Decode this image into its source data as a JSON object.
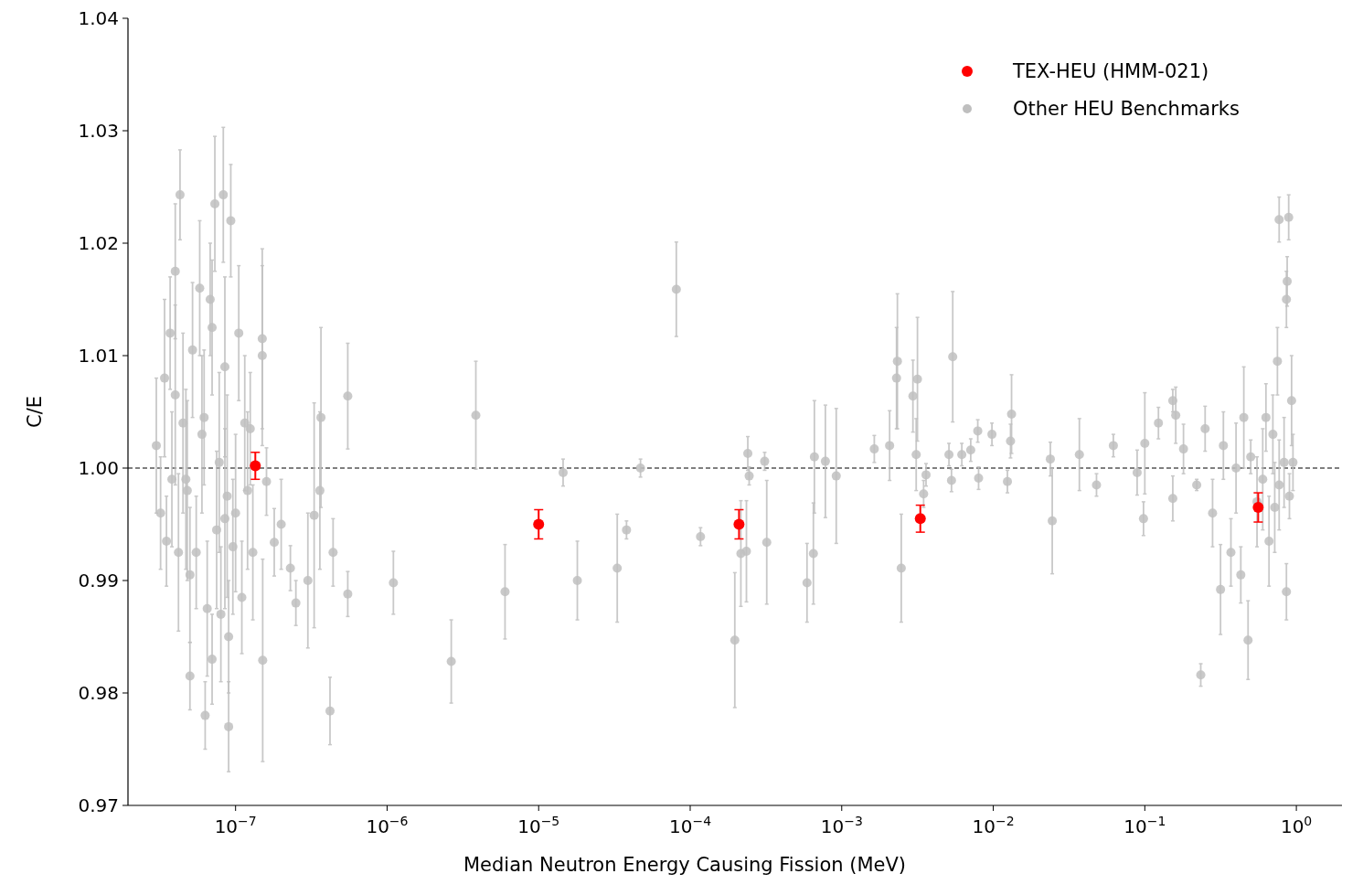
{
  "chart_data": {
    "type": "scatter",
    "xlabel": "Median Neutron Energy Causing Fission (MeV)",
    "ylabel": "C/E",
    "log": "x",
    "xlim": [
      1.95e-08,
      2.0
    ],
    "ylim": [
      0.97,
      1.04
    ],
    "xticks": [
      {
        "value": 1e-07,
        "label": "10$^{−7}$"
      },
      {
        "value": 1e-06,
        "label": "10$^{−6}$"
      },
      {
        "value": 1e-05,
        "label": "10$^{−5}$"
      },
      {
        "value": 0.0001,
        "label": "10$^{−4}$"
      },
      {
        "value": 0.001,
        "label": "10$^{−3}$"
      },
      {
        "value": 0.01,
        "label": "10$^{−2}$"
      },
      {
        "value": 0.1,
        "label": "10$^{−1}$"
      },
      {
        "value": 1,
        "label": "10$^{0}$"
      }
    ],
    "yticks": [
      0.97,
      0.98,
      0.99,
      {
        "value": 1,
        "label": "1.00"
      },
      1.01,
      1.02,
      1.03,
      1.04
    ],
    "ref_lines": [
      {
        "axis": "y",
        "value": 1,
        "color": "#000000",
        "line_style": "dashed"
      }
    ],
    "legend": "top right",
    "marker": "circle",
    "grid": false,
    "series": [
      {
        "name": "TEX-HEU (HMM-021)",
        "color": "#ff0000",
        "x": [
          1.35e-07,
          1e-05,
          0.00021,
          0.0033,
          0.56
        ],
        "values": [
          1.0002,
          0.995,
          0.995,
          0.9955,
          0.9965
        ],
        "errors": [
          0.0012,
          0.0013,
          0.0013,
          0.0012,
          0.0013
        ]
      },
      {
        "name": "Other HEU Benchmarks",
        "color": "#bfbfbf",
        "x": [
          3e-08,
          3.2e-08,
          3.4e-08,
          3.5e-08,
          3.7e-08,
          3.8e-08,
          4e-08,
          4.2e-08,
          4.3e-08,
          4.5e-08,
          4.7e-08,
          5e-08,
          5.2e-08,
          5.5e-08,
          5.8e-08,
          6e-08,
          6.3e-08,
          6.5e-08,
          6.8e-08,
          7e-08,
          7.3e-08,
          7.5e-08,
          7.8e-08,
          8e-08,
          8.3e-08,
          8.5e-08,
          8.8e-08,
          9e-08,
          9.3e-08,
          9.6e-08,
          1e-07,
          1.05e-07,
          1.1e-07,
          1.15e-07,
          1.2e-07,
          1.25e-07,
          5e-08,
          7e-08,
          4e-08,
          8.5e-08,
          4.8e-08,
          6.2e-08,
          9e-08,
          1.3e-07,
          1.51e-07,
          1.5e-07,
          1.5e-07,
          1.6e-07,
          1.8e-07,
          2e-07,
          2.3e-07,
          2.5e-07,
          3e-07,
          3.3e-07,
          3.66e-07,
          3.6e-07,
          4.2e-07,
          4.4e-07,
          5.5e-07,
          5.5e-07,
          1.1e-06,
          2.65e-06,
          3.85e-06,
          6e-06,
          1.45e-05,
          1.8e-05,
          3.3e-05,
          3.8e-05,
          4.7e-05,
          8.1e-05,
          0.000117,
          0.000197,
          0.000216,
          0.00024,
          0.000235,
          0.000245,
          0.00032,
          0.00031,
          0.00059,
          0.00065,
          0.00066,
          0.00078,
          0.00092,
          0.00164,
          0.00207,
          0.00233,
          0.0023,
          0.00247,
          0.00295,
          0.00316,
          0.0031,
          0.00347,
          0.0036,
          0.0051,
          0.0054,
          0.0053,
          0.0062,
          0.0071,
          0.0079,
          0.008,
          0.0098,
          0.0124,
          0.0132,
          0.013,
          0.0238,
          0.0245,
          0.037,
          0.048,
          0.062,
          0.089,
          0.098,
          0.1,
          0.123,
          0.153,
          0.153,
          0.16,
          0.18,
          0.234,
          0.22,
          0.25,
          0.28,
          0.316,
          0.33,
          0.37,
          0.4,
          0.43,
          0.45,
          0.48,
          0.5,
          0.55,
          0.6,
          0.63,
          0.66,
          0.7,
          0.72,
          0.75,
          0.77,
          0.77,
          0.83,
          0.89,
          0.87,
          0.86,
          0.86,
          0.9,
          0.93,
          0.95
        ],
        "values": [
          1.002,
          0.996,
          1.008,
          0.9935,
          1.012,
          0.999,
          1.0175,
          0.9925,
          1.0243,
          1.004,
          0.999,
          0.9815,
          1.0105,
          0.9925,
          1.016,
          1.003,
          0.978,
          0.9875,
          1.015,
          0.983,
          1.0235,
          0.9945,
          1.0005,
          0.987,
          1.0243,
          1.009,
          0.9975,
          0.977,
          1.022,
          0.993,
          0.996,
          1.012,
          0.9885,
          1.004,
          0.998,
          1.0035,
          0.9905,
          1.0125,
          1.0065,
          0.9955,
          0.998,
          1.0045,
          0.985,
          0.9925,
          0.9829,
          1.0115,
          1.01,
          0.9988,
          0.9934,
          0.995,
          0.9911,
          0.988,
          0.99,
          0.9958,
          1.0045,
          0.998,
          0.9784,
          0.9925,
          1.0064,
          0.9888,
          0.9898,
          0.9828,
          1.0047,
          0.989,
          0.9996,
          0.99,
          0.9911,
          0.9945,
          1.0,
          1.0159,
          0.9939,
          0.9847,
          0.9924,
          1.0013,
          0.9926,
          0.9993,
          0.9934,
          1.0006,
          0.9898,
          0.9924,
          1.001,
          1.0006,
          0.9993,
          1.0017,
          1.002,
          1.0095,
          1.008,
          0.9911,
          1.0064,
          1.0079,
          1.0012,
          0.9977,
          0.9994,
          1.0012,
          1.0099,
          0.9989,
          1.0012,
          1.0016,
          1.0033,
          0.9991,
          1.003,
          0.9988,
          1.0048,
          1.0024,
          1.0008,
          0.9953,
          1.0012,
          0.9985,
          1.002,
          0.9996,
          0.9955,
          1.0022,
          1.004,
          1.006,
          0.9973,
          1.0047,
          1.0017,
          0.9816,
          0.9985,
          1.0035,
          0.996,
          0.9892,
          1.002,
          0.9925,
          1.0,
          0.9905,
          1.0045,
          0.9847,
          1.001,
          0.997,
          0.999,
          1.0045,
          0.9935,
          1.003,
          0.9965,
          1.0095,
          0.9985,
          1.0221,
          1.0005,
          1.0223,
          1.0166,
          1.015,
          0.989,
          0.9975,
          1.006,
          1.0005
        ],
        "errors": [
          0.006,
          0.005,
          0.007,
          0.004,
          0.005,
          0.006,
          0.006,
          0.007,
          0.004,
          0.008,
          0.008,
          0.003,
          0.006,
          0.005,
          0.006,
          0.007,
          0.003,
          0.006,
          0.005,
          0.004,
          0.006,
          0.007,
          0.008,
          0.006,
          0.006,
          0.008,
          0.009,
          0.004,
          0.005,
          0.006,
          0.007,
          0.006,
          0.005,
          0.006,
          0.007,
          0.005,
          0.006,
          0.006,
          0.008,
          0.008,
          0.008,
          0.006,
          0.005,
          0.006,
          0.009,
          0.008,
          0.008,
          0.003,
          0.003,
          0.004,
          0.002,
          0.002,
          0.006,
          0.01,
          0.008,
          0.007,
          0.003,
          0.003,
          0.0047,
          0.002,
          0.0028,
          0.0037,
          0.0048,
          0.0042,
          0.0012,
          0.0035,
          0.0048,
          0.0008,
          0.0008,
          0.0042,
          0.0008,
          0.006,
          0.0047,
          0.0015,
          0.0045,
          0.0008,
          0.0055,
          0.0008,
          0.0035,
          0.0045,
          0.005,
          0.005,
          0.006,
          0.0012,
          0.0031,
          0.006,
          0.0045,
          0.0048,
          0.0032,
          0.0055,
          0.0032,
          0.0012,
          0.001,
          0.001,
          0.0058,
          0.001,
          0.001,
          0.001,
          0.001,
          0.001,
          0.001,
          0.001,
          0.0035,
          0.0015,
          0.0015,
          0.0047,
          0.0032,
          0.001,
          0.001,
          0.002,
          0.0015,
          0.0045,
          0.0014,
          0.001,
          0.002,
          0.0025,
          0.0022,
          0.001,
          0.0005,
          0.002,
          0.003,
          0.004,
          0.003,
          0.003,
          0.004,
          0.0025,
          0.0045,
          0.0035,
          0.0015,
          0.004,
          0.0045,
          0.003,
          0.004,
          0.0035,
          0.004,
          0.003,
          0.004,
          0.002,
          0.004,
          0.002,
          0.0022,
          0.0025,
          0.0025,
          0.002,
          0.004,
          0.0025
        ]
      }
    ]
  }
}
